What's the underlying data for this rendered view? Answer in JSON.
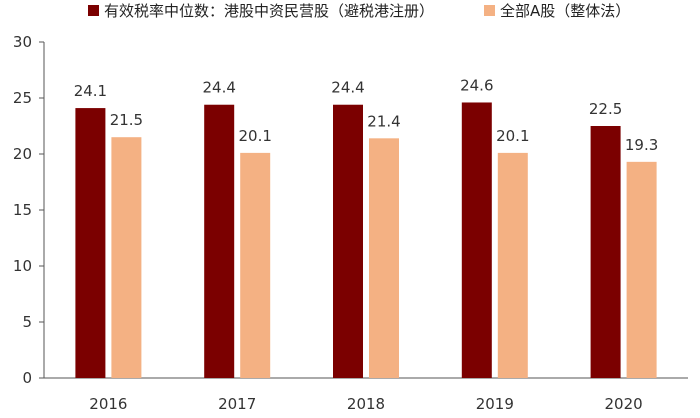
{
  "chart_data": {
    "type": "bar",
    "title": "",
    "xlabel": "",
    "ylabel": "",
    "categories": [
      "2016",
      "2017",
      "2018",
      "2019",
      "2020"
    ],
    "series": [
      {
        "name": "有效税率中位数：港股中资民营股（避税港注册）",
        "color": "#7B0000",
        "values": [
          24.1,
          24.4,
          24.4,
          24.6,
          22.5
        ]
      },
      {
        "name": "全部A股（整体法）",
        "color": "#F4B183",
        "values": [
          21.5,
          20.1,
          21.4,
          20.1,
          19.3
        ]
      }
    ],
    "ylim": [
      0,
      30
    ],
    "yticks": [
      0,
      5,
      10,
      15,
      20,
      25,
      30
    ],
    "grid": false,
    "legend": "top"
  }
}
